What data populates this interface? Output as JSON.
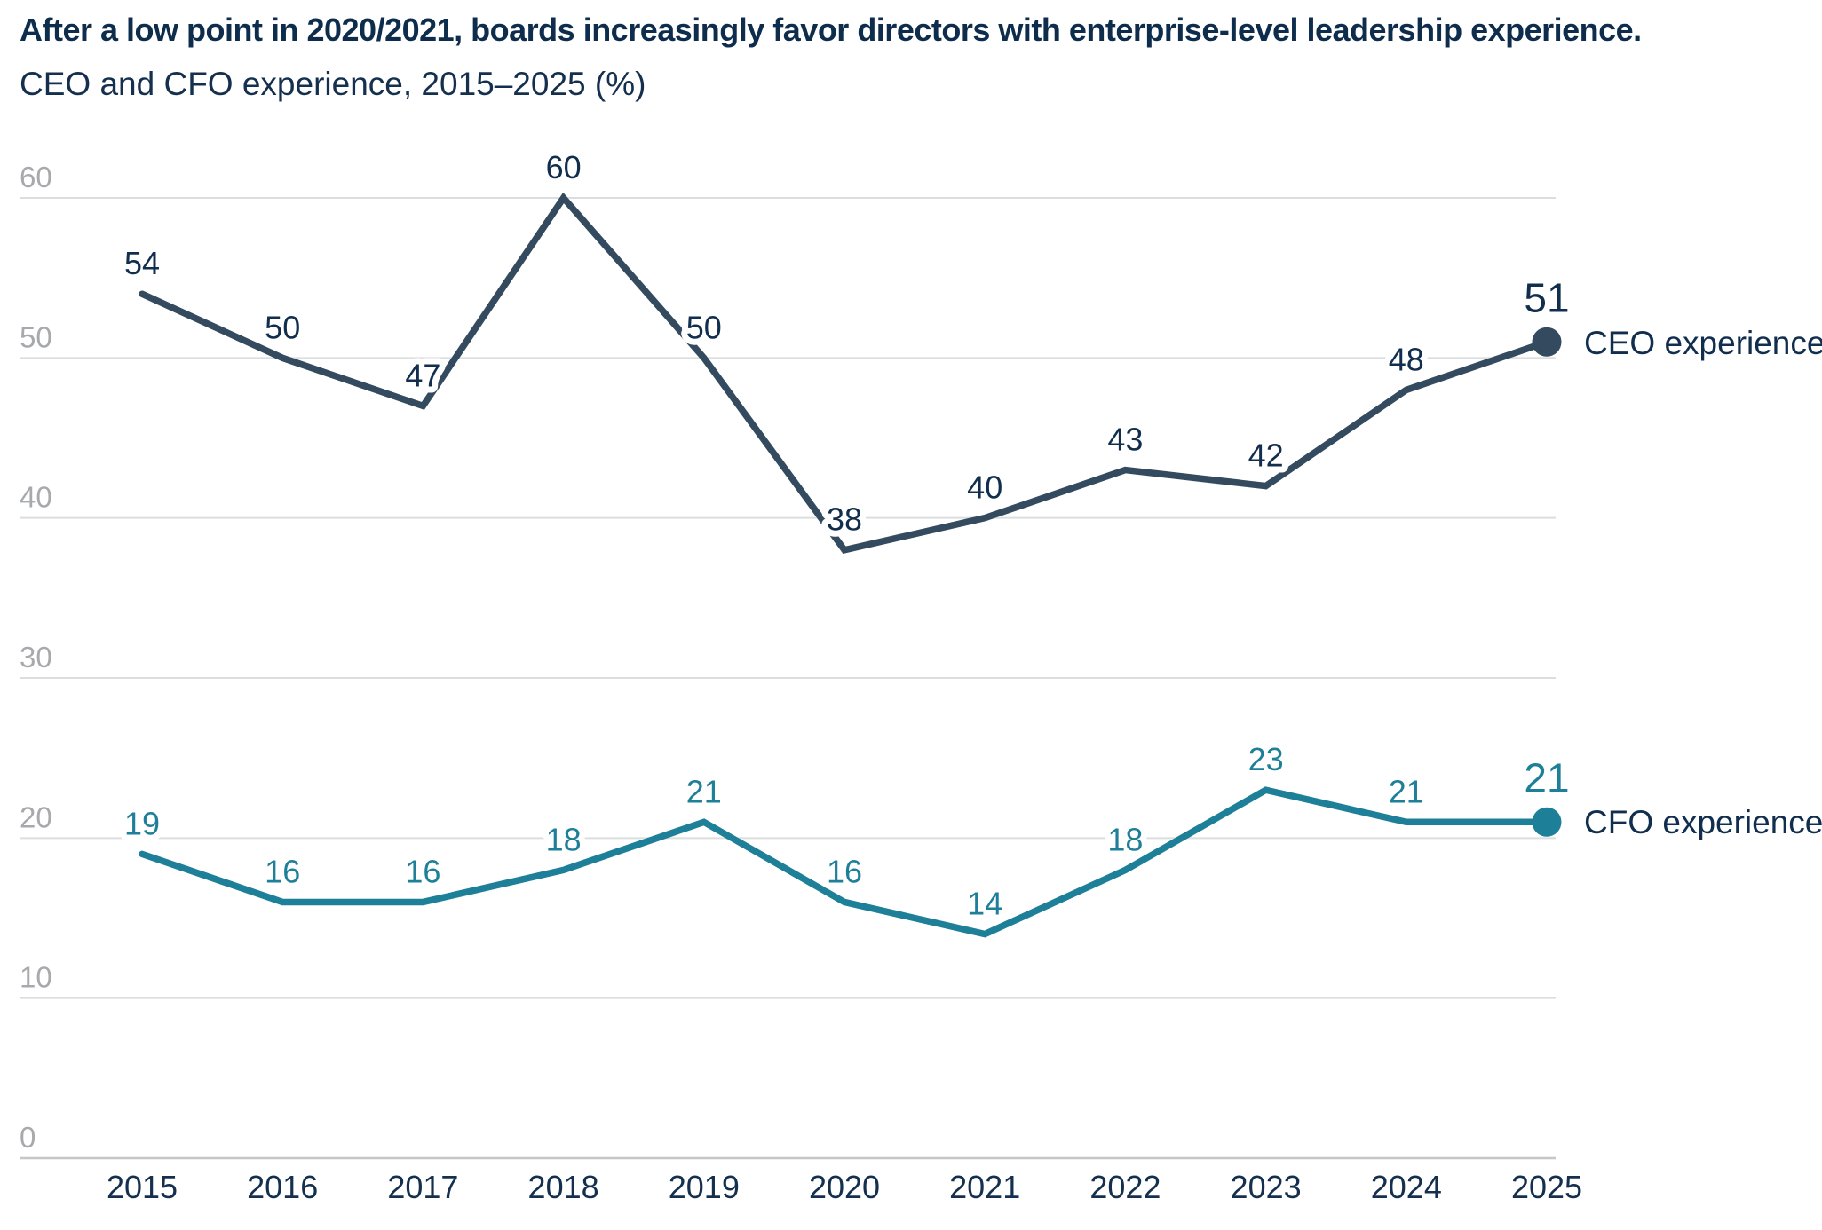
{
  "header": {
    "title": "After a low point in 2020/2021, boards increasingly favor directors with enterprise-level leadership experience.",
    "subtitle": "CEO and CFO experience, 2015–2025 (%)"
  },
  "chart_data": {
    "type": "line",
    "title": "After a low point in 2020/2021, boards increasingly favor directors with enterprise-level leadership experience.",
    "subtitle": "CEO and CFO experience, 2015–2025 (%)",
    "categories": [
      "2015",
      "2016",
      "2017",
      "2018",
      "2019",
      "2020",
      "2021",
      "2022",
      "2023",
      "2024",
      "2025"
    ],
    "series": [
      {
        "name": "CEO experience",
        "values": [
          54,
          50,
          47,
          60,
          50,
          38,
          40,
          43,
          42,
          48,
          51
        ],
        "color": "#344a5f",
        "label_color": "#112e4e",
        "end_value_label": "51",
        "end_marker": true
      },
      {
        "name": "CFO experience",
        "values": [
          19,
          16,
          16,
          18,
          21,
          16,
          14,
          18,
          23,
          21,
          21
        ],
        "color": "#1e7f99",
        "label_color": "#1e7f99",
        "end_value_label": "21",
        "end_marker": true
      }
    ],
    "xlabel": "",
    "ylabel": "",
    "ylim": [
      0,
      60
    ],
    "yticks": [
      0,
      10,
      20,
      30,
      40,
      50,
      60
    ],
    "grid": "horizontal",
    "value_labels": true,
    "legend_position": "right-of-line-end"
  },
  "colors": {
    "background": "#ffffff",
    "title": "#0e2d4c",
    "subtitle": "#14304e",
    "gridline": "#dcddde",
    "baseline": "#c4c6c8",
    "tick_label": "#a7a9ac",
    "year_label": "#14304e",
    "legend_text": "#112e4e"
  }
}
